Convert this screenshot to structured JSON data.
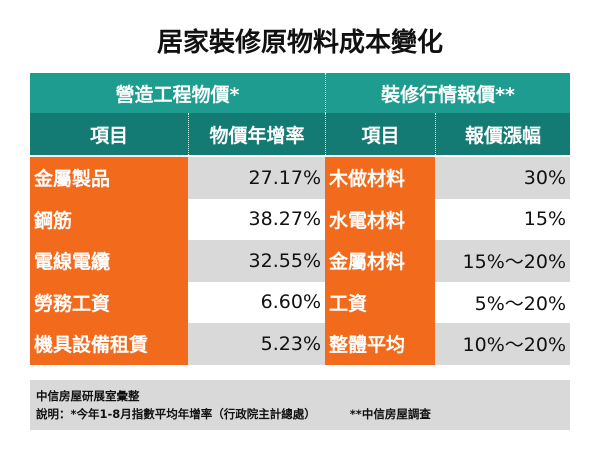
{
  "title": "居家裝修原物料成本變化",
  "table": {
    "group_headers": [
      "營造工程物價*",
      "裝修行情報價**"
    ],
    "columns": [
      "項目",
      "物價年增率",
      "項目",
      "報價漲幅"
    ],
    "rows": [
      [
        "金屬製品",
        "27.17%",
        "木做材料",
        "30%"
      ],
      [
        "鋼筋",
        "38.27%",
        "水電材料",
        "15%"
      ],
      [
        "電線電纜",
        "32.55%",
        "金屬材料",
        "15%～20%"
      ],
      [
        "勞務工資",
        "6.60%",
        "工資",
        "5%～20%"
      ],
      [
        "機具設備租賃",
        "5.23%",
        "整體平均",
        "10%～20%"
      ]
    ]
  },
  "footer": {
    "source": "中信房屋研展室彙整",
    "note_left": "說明：*今年1-8月指數平均年增率（行政院主計總處）",
    "note_right": "**中信房屋調查"
  }
}
